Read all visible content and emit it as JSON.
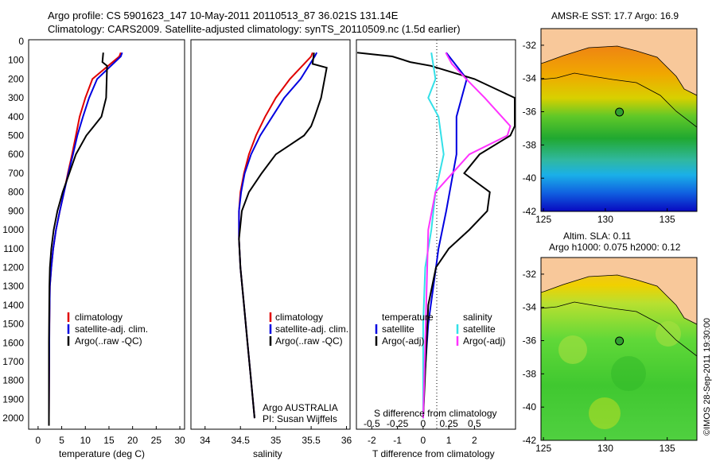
{
  "header": {
    "line1": "Argo profile: CS 5901623_147 10-May-2011 20110513_87 36.021S 131.14E",
    "line2": "Climatology: CARS2009. Satellite-adjusted climatology: synTS_20110509.nc (1.5d earlier)"
  },
  "colors": {
    "climatology": "#e00000",
    "satellite": "#0000e0",
    "argo": "#000000",
    "sat_salinity": "#33e0e8",
    "argo_salinity": "#ff33ff"
  },
  "depth_axis": {
    "ticks": [
      "0",
      "100",
      "200",
      "300",
      "400",
      "500",
      "600",
      "700",
      "800",
      "900",
      "1000",
      "1100",
      "1200",
      "1300",
      "1400",
      "1500",
      "1600",
      "1700",
      "1800",
      "1900",
      "2000"
    ]
  },
  "panels": {
    "temperature": {
      "xlabel": "temperature (deg C)",
      "ticks": [
        "0",
        "5",
        "10",
        "15",
        "20",
        "25",
        "30"
      ],
      "legend": [
        "climatology",
        "satellite-adj. clim.",
        "Argo(..raw -QC)"
      ]
    },
    "salinity": {
      "xlabel": "salinity",
      "ticks": [
        "34",
        "34.5",
        "35",
        "35.5",
        "36"
      ],
      "legend": [
        "climatology",
        "satellite-adj. clim.",
        "Argo(..raw -QC)"
      ],
      "note1": "Argo AUSTRALIA",
      "note2": "PI: Susan Wijffels"
    },
    "difference": {
      "xlabel": "T difference from climatology",
      "top_label": "S difference from climatology",
      "ticks_T": [
        "-2",
        "-1",
        "0",
        "1",
        "2"
      ],
      "ticks_S": [
        "-0.5",
        "-0.25",
        "0",
        "0.25",
        "0.5"
      ],
      "legend_temperature": {
        "title": "temperature",
        "items": [
          "satellite",
          "Argo(-adj)"
        ]
      },
      "legend_salinity": {
        "title": "salinity",
        "items": [
          "satellite",
          "Argo(-adj)"
        ]
      }
    }
  },
  "maps": {
    "sst": {
      "title": "AMSR-E SST: 17.7 Argo: 16.9",
      "lat_ticks": [
        "-32",
        "-34",
        "-36",
        "-38",
        "-40",
        "-42"
      ],
      "lon_ticks": [
        "125",
        "130",
        "135"
      ]
    },
    "sla": {
      "title1": "Altim. SLA: 0.11",
      "title2": "Argo h1000: 0.075 h2000: 0.12",
      "lat_ticks": [
        "-32",
        "-34",
        "-36",
        "-38",
        "-40",
        "-42"
      ],
      "lon_ticks": [
        "125",
        "130",
        "135"
      ]
    },
    "station": {
      "lon": 131.14,
      "lat": -36.021
    }
  },
  "credit": "©IMOS 28-Sep-2011 19:30:00",
  "chart_data": [
    {
      "type": "line",
      "title": "temperature",
      "xlabel": "temperature (deg C)",
      "ylabel": "",
      "xlim": [
        -2,
        31
      ],
      "ylim": [
        2050,
        0
      ],
      "series": [
        {
          "name": "climatology",
          "x": [
            17.5,
            17.2,
            11.5,
            10,
            8.8,
            8,
            7.2,
            6.3,
            5.5,
            4.6,
            3.8,
            3.2,
            2.8,
            2.5,
            2.4,
            2.3
          ],
          "y": [
            60,
            80,
            200,
            300,
            400,
            500,
            600,
            700,
            800,
            900,
            1000,
            1100,
            1200,
            1300,
            1500,
            2000
          ]
        },
        {
          "name": "satellite-adj. clim.",
          "x": [
            17.8,
            17.5,
            12.5,
            10.8,
            9.5,
            8.3,
            7.4,
            6.4,
            5.5,
            4.6,
            3.8,
            3.2,
            2.8,
            2.5,
            2.4,
            2.3
          ],
          "y": [
            60,
            80,
            200,
            300,
            400,
            500,
            600,
            700,
            800,
            900,
            1000,
            1100,
            1200,
            1300,
            1500,
            2000
          ]
        },
        {
          "name": "Argo(..raw -QC)",
          "x": [
            13.8,
            13.6,
            14.6,
            14.4,
            13.4,
            11.8,
            10.2,
            8,
            6.6,
            5.2,
            4.1,
            3.3,
            2.8,
            2.5,
            2.4,
            2.3,
            2.3
          ],
          "y": [
            60,
            110,
            130,
            300,
            400,
            450,
            500,
            600,
            700,
            800,
            900,
            1000,
            1100,
            1200,
            1300,
            1600,
            2040
          ]
        }
      ]
    },
    {
      "type": "line",
      "title": "salinity",
      "xlabel": "salinity",
      "ylabel": "",
      "xlim": [
        33.8,
        36.05
      ],
      "ylim": [
        2050,
        0
      ],
      "series": [
        {
          "name": "climatology",
          "x": [
            35.52,
            35.5,
            35.2,
            35,
            34.85,
            34.72,
            34.62,
            34.55,
            34.5,
            34.48,
            34.48,
            34.5,
            34.55,
            34.6,
            34.65,
            34.7
          ],
          "y": [
            60,
            80,
            200,
            300,
            400,
            500,
            600,
            700,
            800,
            900,
            1050,
            1200,
            1400,
            1600,
            1800,
            2000
          ]
        },
        {
          "name": "satellite-adj. clim.",
          "x": [
            35.58,
            35.55,
            35.35,
            35.12,
            34.95,
            34.78,
            34.65,
            34.56,
            34.51,
            34.48,
            34.48,
            34.5,
            34.55,
            34.6,
            34.65,
            34.7
          ],
          "y": [
            60,
            80,
            200,
            300,
            400,
            500,
            600,
            700,
            800,
            900,
            1050,
            1200,
            1400,
            1600,
            1800,
            2000
          ]
        },
        {
          "name": "Argo(..raw -QC)",
          "x": [
            35.54,
            35.52,
            35.72,
            35.64,
            35.55,
            35.5,
            35.4,
            35.2,
            35,
            34.8,
            34.62,
            34.52,
            34.48,
            34.5,
            34.55,
            34.6,
            34.65,
            34.7
          ],
          "y": [
            60,
            120,
            140,
            300,
            400,
            450,
            500,
            550,
            600,
            700,
            800,
            900,
            1050,
            1200,
            1400,
            1600,
            1800,
            2000
          ]
        }
      ]
    },
    {
      "type": "line",
      "title": "difference from climatology",
      "xlabel": "T difference from climatology",
      "ylabel": "",
      "xlim": [
        -2.6,
        3.6
      ],
      "ylim": [
        2050,
        0
      ],
      "series": [
        {
          "name": "temperature satellite",
          "x": [
            0.9,
            1.7,
            1.3,
            1.3,
            0.9,
            0.6,
            0.4,
            0.3,
            0.2,
            0.1,
            0.05,
            0
          ],
          "y": [
            60,
            200,
            400,
            600,
            900,
            1100,
            1300,
            1400,
            1500,
            1700,
            1800,
            2000
          ]
        },
        {
          "name": "temperature Argo(-adj)",
          "x": [
            -3.8,
            -1.2,
            -0.5,
            0.3,
            2,
            3.8,
            4.5,
            3.4,
            2.2,
            1.6,
            2.6,
            2.5,
            1.8,
            1,
            0.5,
            0.2,
            0.1,
            0
          ],
          "y": [
            60,
            80,
            110,
            130,
            200,
            300,
            450,
            500,
            600,
            700,
            800,
            900,
            1000,
            1100,
            1200,
            1400,
            1700,
            2000
          ]
        },
        {
          "name": "salinity satellite",
          "x": [
            0.08,
            0.12,
            0.05,
            0.15,
            0.2,
            0.12,
            0.08,
            0.02,
            0,
            0
          ],
          "y": [
            60,
            200,
            300,
            400,
            600,
            800,
            1000,
            1200,
            1500,
            2000
          ]
        },
        {
          "name": "salinity Argo(-adj)",
          "x": [
            0.22,
            0.28,
            0.42,
            0.6,
            0.85,
            0.82,
            0.45,
            0.12,
            0.05,
            0
          ],
          "y": [
            60,
            120,
            200,
            300,
            450,
            500,
            600,
            800,
            1000,
            2000
          ]
        }
      ]
    }
  ]
}
